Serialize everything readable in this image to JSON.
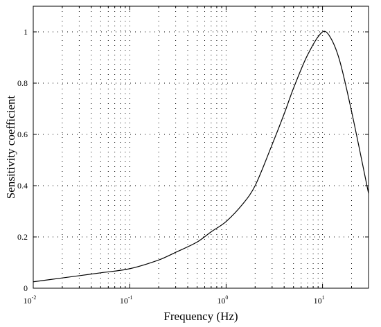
{
  "chart_data": {
    "type": "line",
    "xlabel": "Frequency (Hz)",
    "ylabel": "Sensitivity coefficient",
    "x_scale": "log",
    "xlim": [
      0.01,
      30
    ],
    "ylim": [
      0,
      1.1
    ],
    "grid": "dotted",
    "x_ticks": [
      {
        "value": 0.01,
        "base": "10",
        "exp": "-2"
      },
      {
        "value": 0.1,
        "base": "10",
        "exp": "-1"
      },
      {
        "value": 1,
        "base": "10",
        "exp": "0"
      },
      {
        "value": 10,
        "base": "10",
        "exp": "1"
      }
    ],
    "y_ticks": [
      {
        "value": 0,
        "label": "0"
      },
      {
        "value": 0.2,
        "label": "0.2"
      },
      {
        "value": 0.4,
        "label": "0.4"
      },
      {
        "value": 0.6,
        "label": "0.6"
      },
      {
        "value": 0.8,
        "label": "0.8"
      },
      {
        "value": 1,
        "label": "1"
      }
    ],
    "series": [
      {
        "x": [
          0.01,
          0.02,
          0.05,
          0.1,
          0.2,
          0.3,
          0.5,
          0.7,
          1.0,
          1.5,
          2.0,
          3.0,
          4.0,
          5.0,
          7.0,
          10.0,
          12.0,
          15.0,
          20.0,
          30.0
        ],
        "y": [
          0.025,
          0.04,
          0.06,
          0.076,
          0.11,
          0.14,
          0.18,
          0.22,
          0.26,
          0.33,
          0.4,
          0.56,
          0.68,
          0.78,
          0.91,
          1.0,
          0.98,
          0.89,
          0.69,
          0.37
        ]
      }
    ]
  }
}
